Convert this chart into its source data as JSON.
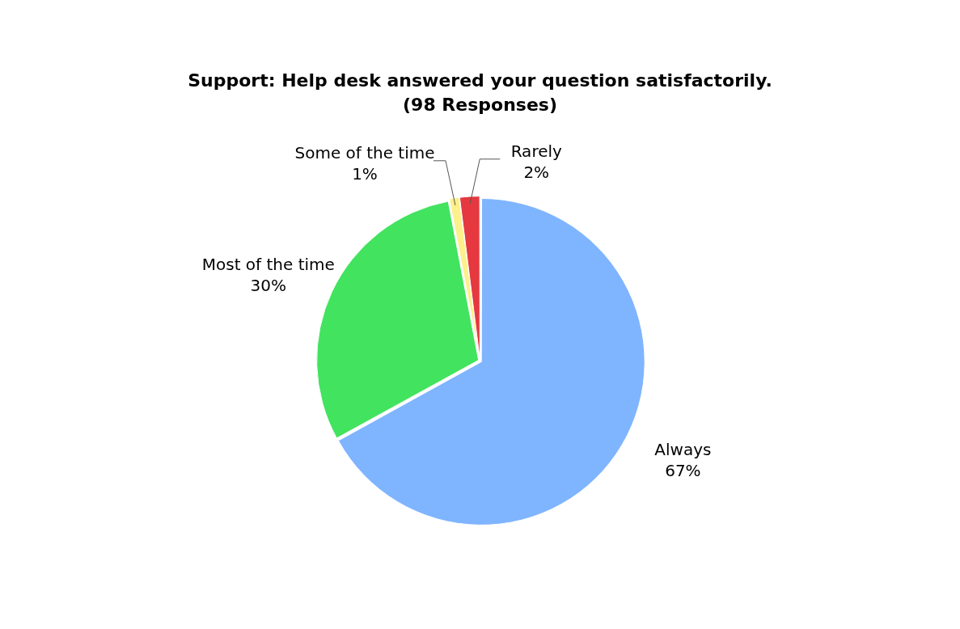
{
  "chart_data": {
    "type": "pie",
    "title": "Support: Help desk answered your question satisfactorily.",
    "subtitle": "(98 Responses)",
    "categories": [
      "Always",
      "Most of the time",
      "Some of the time",
      "Rarely"
    ],
    "values": [
      67,
      30,
      1,
      2
    ],
    "colors": [
      "#7fb5ff",
      "#42e35e",
      "#fef08a",
      "#e5383f"
    ],
    "value_labels": [
      "67%",
      "30%",
      "1%",
      "2%"
    ],
    "legend": false
  }
}
